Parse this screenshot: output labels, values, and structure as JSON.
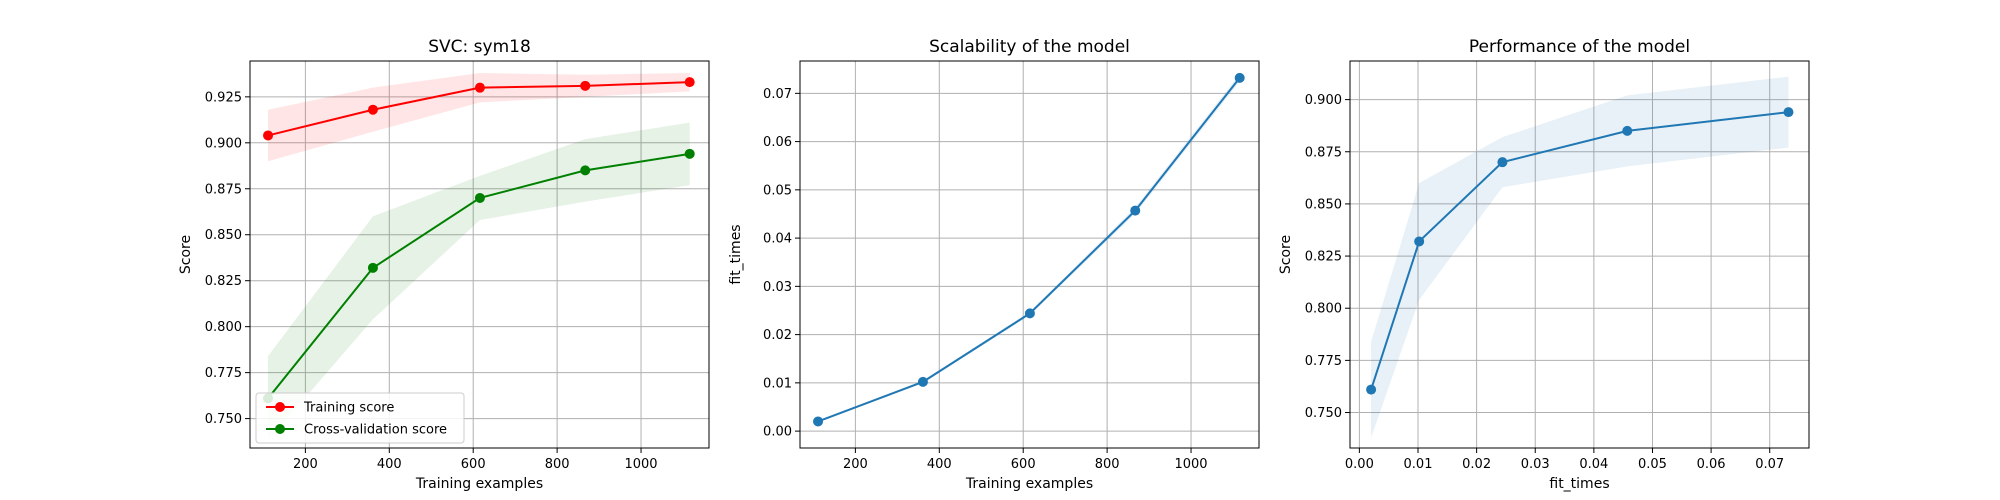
{
  "chart_data": [
    {
      "type": "line",
      "title": "SVC: sym18",
      "xlabel": "Training examples",
      "ylabel": "Score",
      "xlim": [
        68,
        1162
      ],
      "ylim": [
        0.734,
        0.9445
      ],
      "xticks": [
        200,
        400,
        600,
        800,
        1000
      ],
      "yticks": [
        0.75,
        0.775,
        0.8,
        0.825,
        0.85,
        0.875,
        0.9,
        0.925
      ],
      "ytick_labels": [
        "0.750",
        "0.775",
        "0.800",
        "0.825",
        "0.850",
        "0.875",
        "0.900",
        "0.925"
      ],
      "grid": true,
      "legend": "lower-left",
      "x": [
        111,
        361,
        616,
        867,
        1116
      ],
      "series": [
        {
          "name": "Training score",
          "color": "#ff0000",
          "values": [
            0.904,
            0.918,
            0.93,
            0.931,
            0.933
          ],
          "band_low": [
            0.89,
            0.906,
            0.922,
            0.925,
            0.928
          ],
          "band_high": [
            0.918,
            0.93,
            0.938,
            0.937,
            0.938
          ]
        },
        {
          "name": "Cross-validation score",
          "color": "#008000",
          "values": [
            0.761,
            0.832,
            0.87,
            0.885,
            0.894
          ],
          "band_low": [
            0.738,
            0.804,
            0.858,
            0.868,
            0.877
          ],
          "band_high": [
            0.784,
            0.86,
            0.882,
            0.902,
            0.911
          ]
        }
      ]
    },
    {
      "type": "line",
      "title": "Scalability of the model",
      "xlabel": "Training examples",
      "ylabel": "fit_times",
      "xlim": [
        68,
        1162
      ],
      "ylim": [
        -0.0035,
        0.0767
      ],
      "xticks": [
        200,
        400,
        600,
        800,
        1000
      ],
      "yticks": [
        0.0,
        0.01,
        0.02,
        0.03,
        0.04,
        0.05,
        0.06,
        0.07
      ],
      "ytick_labels": [
        "0.00",
        "0.01",
        "0.02",
        "0.03",
        "0.04",
        "0.05",
        "0.06",
        "0.07"
      ],
      "grid": true,
      "x": [
        111,
        361,
        616,
        867,
        1116
      ],
      "series": [
        {
          "color": "#1f77b4",
          "values": [
            0.002,
            0.0102,
            0.0244,
            0.0457,
            0.0732
          ],
          "band_low": [
            0.0019,
            0.0099,
            0.024,
            0.045,
            0.0724
          ],
          "band_high": [
            0.0021,
            0.0105,
            0.0248,
            0.0464,
            0.074
          ]
        }
      ]
    },
    {
      "type": "line",
      "title": "Performance of the model",
      "xlabel": "fit_times",
      "ylabel": "Score",
      "xlim": [
        -0.0016,
        0.0767
      ],
      "ylim": [
        0.733,
        0.9185
      ],
      "xticks": [
        0.0,
        0.01,
        0.02,
        0.03,
        0.04,
        0.05,
        0.06,
        0.07
      ],
      "xtick_labels": [
        "0.00",
        "0.01",
        "0.02",
        "0.03",
        "0.04",
        "0.05",
        "0.06",
        "0.07"
      ],
      "yticks": [
        0.75,
        0.775,
        0.8,
        0.825,
        0.85,
        0.875,
        0.9
      ],
      "ytick_labels": [
        "0.750",
        "0.775",
        "0.800",
        "0.825",
        "0.850",
        "0.875",
        "0.900"
      ],
      "grid": true,
      "x": [
        0.002,
        0.0102,
        0.0244,
        0.0457,
        0.0732
      ],
      "series": [
        {
          "color": "#1f77b4",
          "values": [
            0.761,
            0.832,
            0.87,
            0.885,
            0.894
          ],
          "band_low": [
            0.738,
            0.804,
            0.858,
            0.868,
            0.877
          ],
          "band_high": [
            0.784,
            0.86,
            0.882,
            0.902,
            0.911
          ]
        }
      ]
    }
  ]
}
